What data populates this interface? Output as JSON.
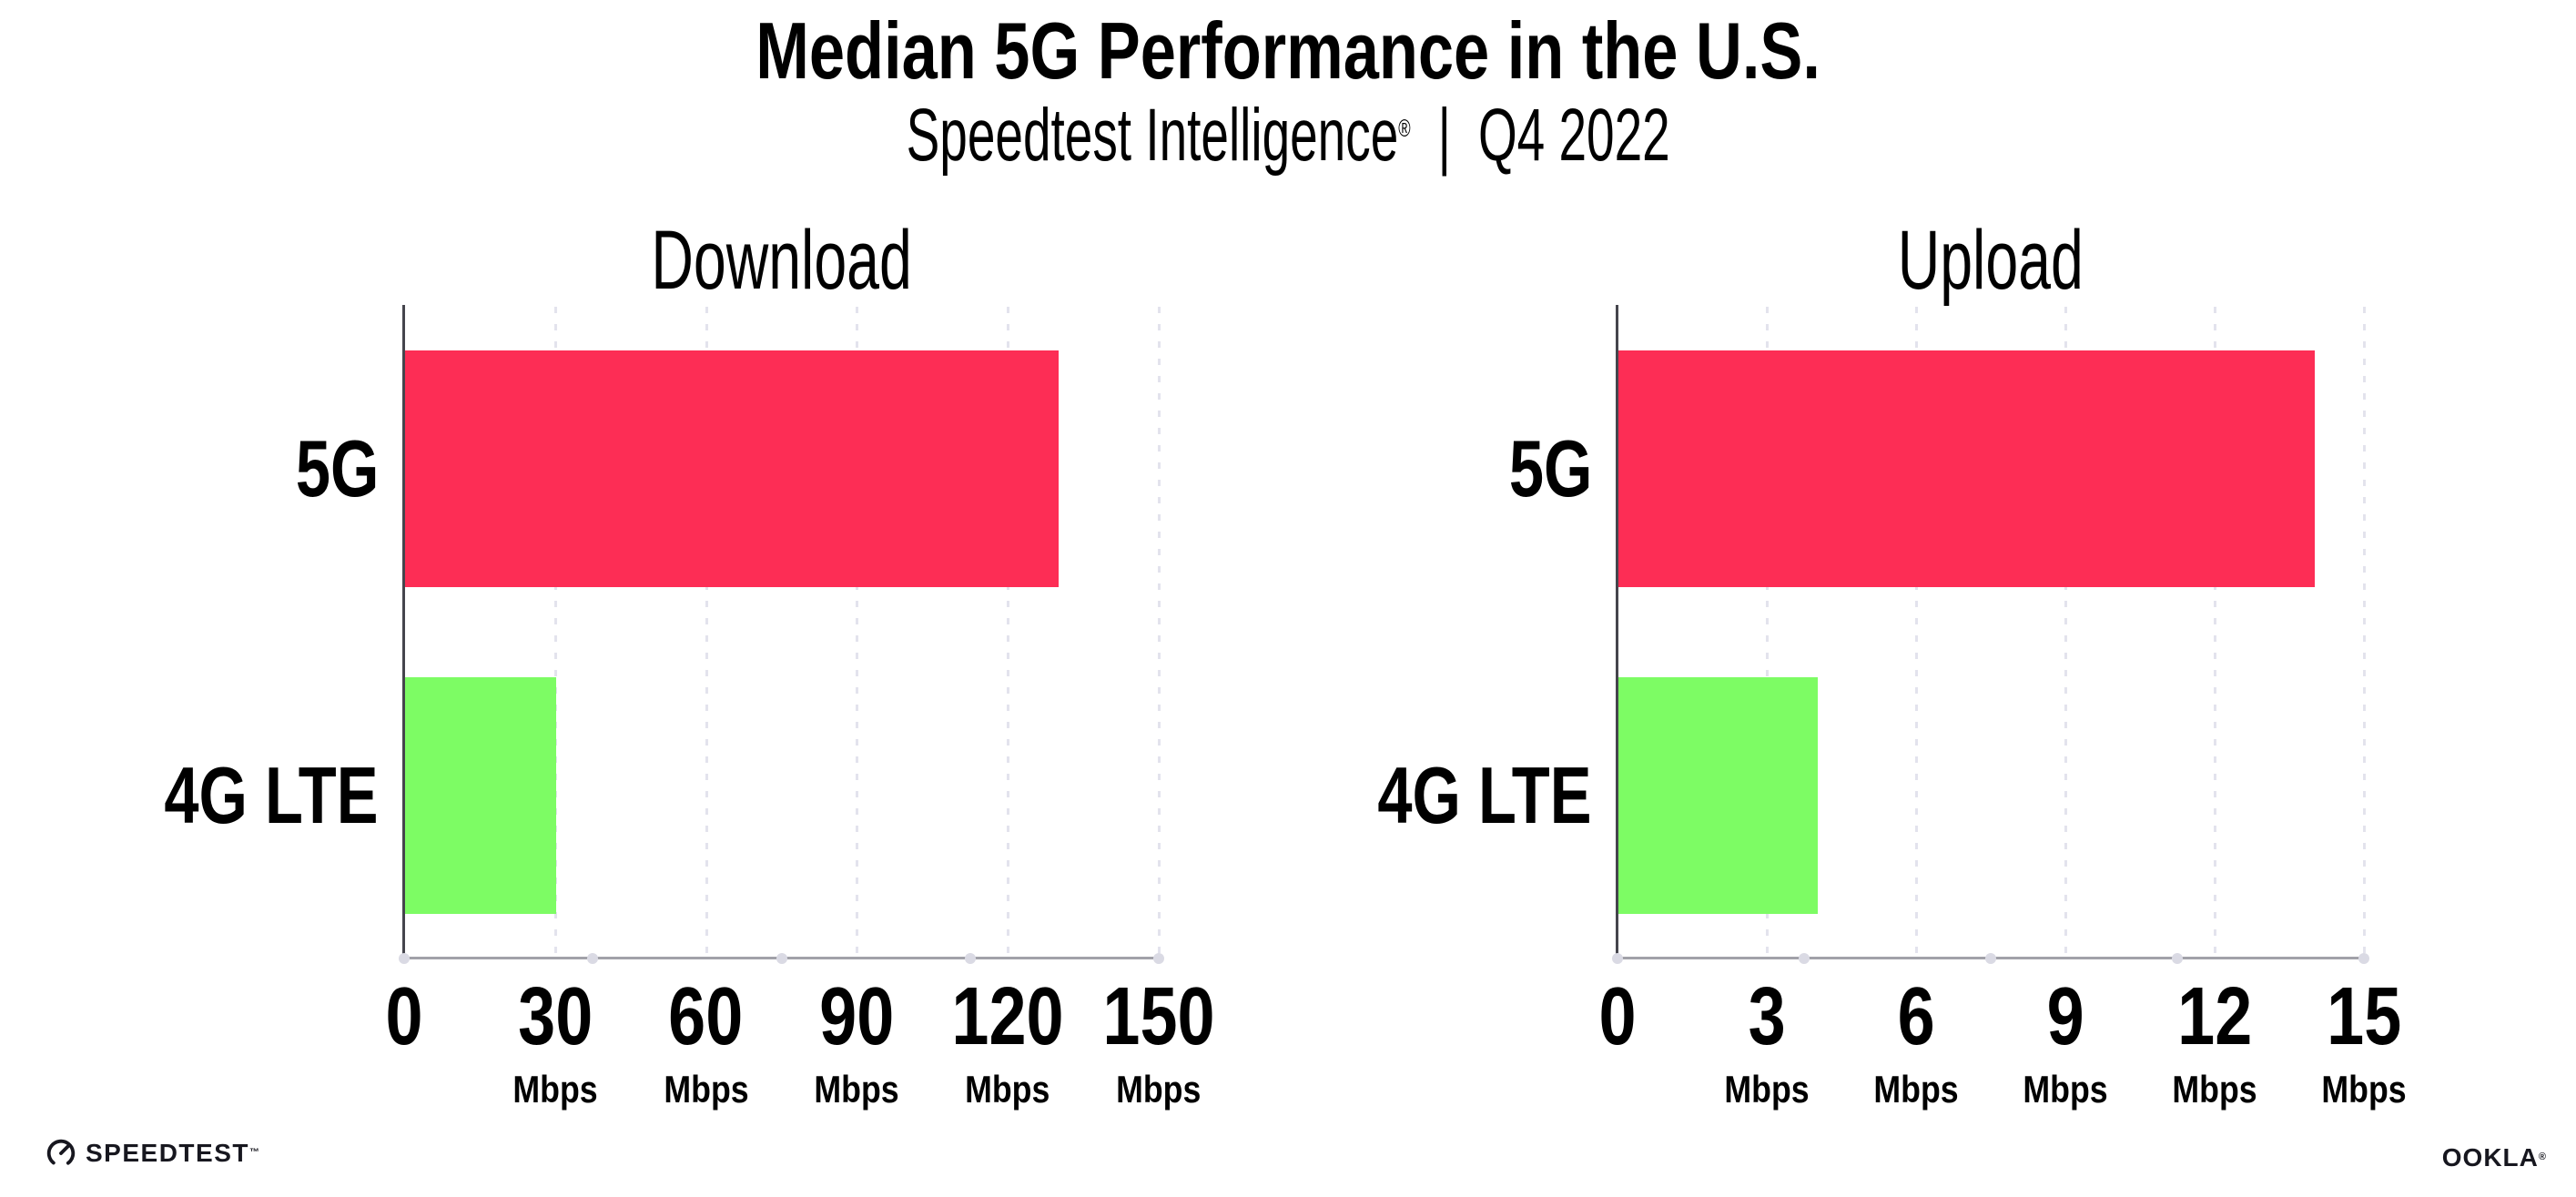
{
  "header": {
    "title": "Median 5G Performance in the U.S.",
    "subtitle": {
      "product": "Speedtest Intelligence",
      "registered_mark": "®",
      "separator": "|",
      "period": "Q4 2022"
    }
  },
  "chart_data": [
    {
      "type": "bar",
      "orientation": "horizontal",
      "title": "Download",
      "categories": [
        "5G",
        "4G LTE"
      ],
      "values": [
        130,
        30
      ],
      "unit": "Mbps",
      "xlabel": "",
      "ylabel": "",
      "xlim": [
        0,
        150
      ],
      "xticks": [
        0,
        30,
        60,
        90,
        120,
        150
      ],
      "bar_colors": [
        "#FD2D55",
        "#7DFC64"
      ],
      "grid": "dotted-vertical-at-ticks",
      "legend": "none"
    },
    {
      "type": "bar",
      "orientation": "horizontal",
      "title": "Upload",
      "categories": [
        "5G",
        "4G LTE"
      ],
      "values": [
        14,
        4
      ],
      "unit": "Mbps",
      "xlabel": "",
      "ylabel": "",
      "xlim": [
        0,
        15
      ],
      "xticks": [
        0,
        3,
        6,
        9,
        12,
        15
      ],
      "bar_colors": [
        "#FD2D55",
        "#7DFC64"
      ],
      "grid": "dotted-vertical-at-ticks",
      "legend": "none"
    }
  ],
  "colors": {
    "bar_5g": "#FD2D55",
    "bar_4g_lte": "#7DFC64",
    "background": "#FFFFFF",
    "text": "#000000",
    "y_axis": "#45454D",
    "x_axis": "#A1A1A9",
    "gridline": "#E3E3ED",
    "axis_dot": "#DADAE4",
    "logo": "#17171F"
  },
  "footer": {
    "speedtest": {
      "icon": "speedtest-gauge-icon",
      "label": "SPEEDTEST",
      "trademark": "™"
    },
    "ookla": {
      "label": "OOKLA",
      "registered_mark": "®"
    }
  }
}
